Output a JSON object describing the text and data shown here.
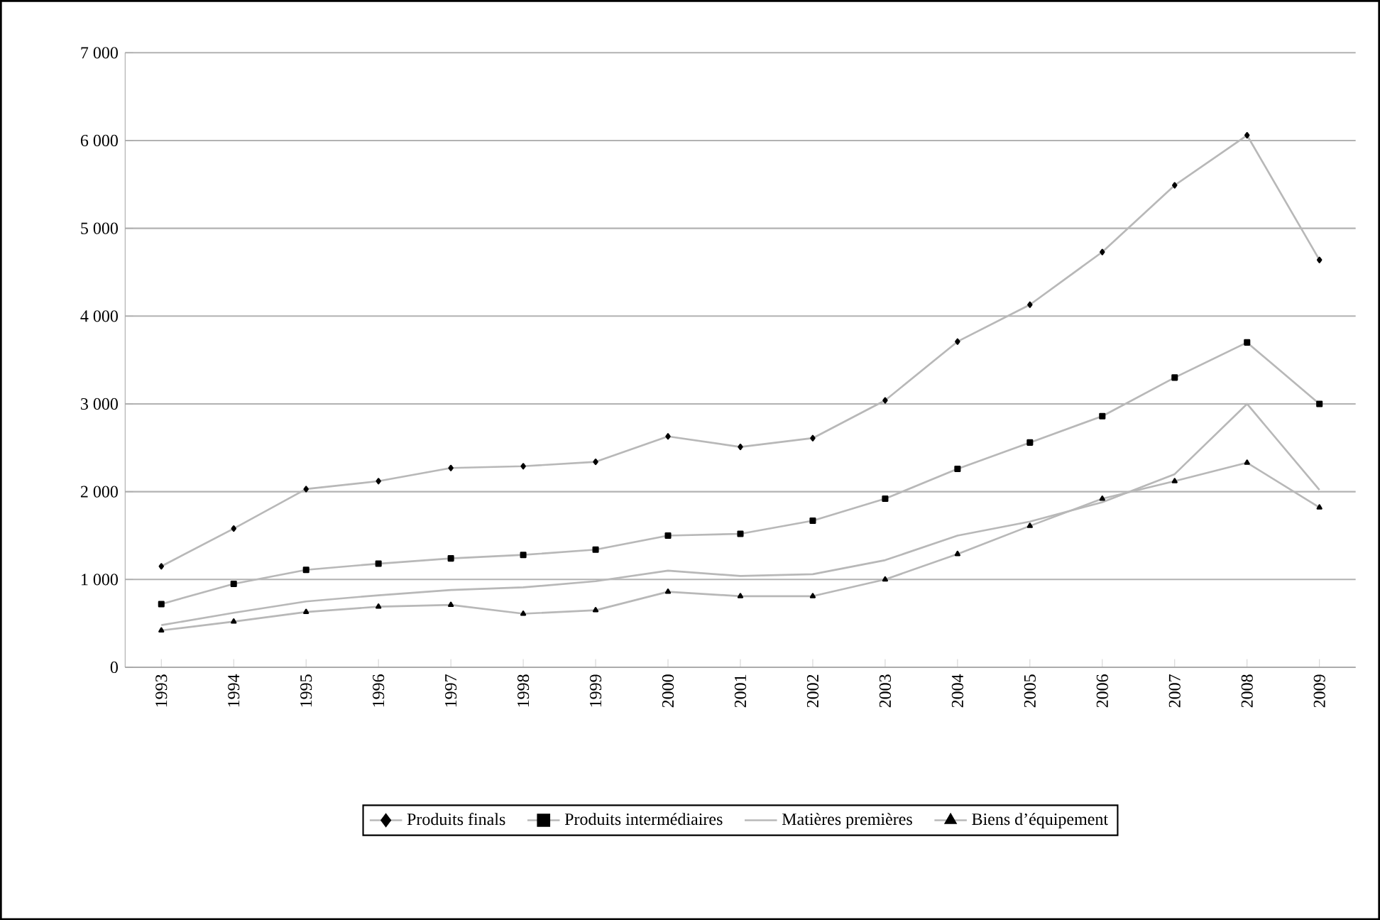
{
  "chart_data": {
    "type": "line",
    "categories": [
      "1993",
      "1994",
      "1995",
      "1996",
      "1997",
      "1998",
      "1999",
      "2000",
      "2001",
      "2002",
      "2003",
      "2004",
      "2005",
      "2006",
      "2007",
      "2008",
      "2009"
    ],
    "series": [
      {
        "name": "Produits finals",
        "color": "#b8b8b8",
        "marker": "diamond",
        "values": [
          1150,
          1580,
          2030,
          2120,
          2270,
          2290,
          2340,
          2630,
          2510,
          2610,
          3040,
          3710,
          4130,
          4730,
          5490,
          6060,
          4640
        ]
      },
      {
        "name": "Produits intermédiaires",
        "color": "#b8b8b8",
        "marker": "square",
        "values": [
          720,
          950,
          1110,
          1180,
          1240,
          1280,
          1340,
          1500,
          1520,
          1670,
          1920,
          2260,
          2560,
          2860,
          3300,
          3700,
          3000
        ]
      },
      {
        "name": "Matières premières",
        "color": "#b8b8b8",
        "marker": "none",
        "values": [
          480,
          620,
          750,
          820,
          880,
          910,
          980,
          1100,
          1040,
          1060,
          1220,
          1500,
          1660,
          1880,
          2200,
          3000,
          2020
        ]
      },
      {
        "name": "Biens d’équipement",
        "color": "#b8b8b8",
        "marker": "triangle",
        "values": [
          420,
          520,
          630,
          690,
          710,
          610,
          650,
          860,
          810,
          810,
          1000,
          1290,
          1610,
          1920,
          2120,
          2330,
          1820
        ]
      }
    ],
    "ylim": [
      0,
      7000
    ],
    "yticks": [
      0,
      {
        "value": 1000,
        "label": "1 000"
      },
      {
        "value": 2000,
        "label": "2 000"
      },
      {
        "value": 3000,
        "label": "3 000"
      },
      {
        "value": 4000,
        "label": "4 000"
      },
      {
        "value": 5000,
        "label": "5 000"
      },
      {
        "value": 6000,
        "label": "6 000"
      },
      {
        "value": 7000,
        "label": "7 000"
      }
    ],
    "grid": "y",
    "legend": "bottom",
    "line_style": "solid"
  }
}
